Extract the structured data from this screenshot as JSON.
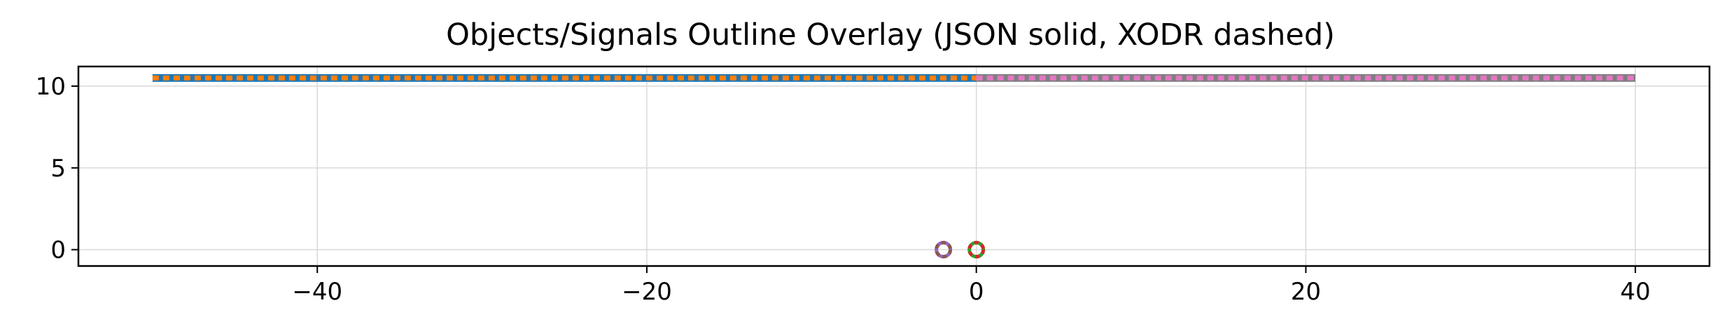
{
  "chart_data": {
    "type": "line",
    "title": "Objects/Signals Outline Overlay (JSON solid, XODR dashed)",
    "xlabel": "",
    "ylabel": "",
    "xlim": [
      -54.5,
      44.5
    ],
    "ylim": [
      -1,
      11.2
    ],
    "xticks": [
      -40,
      -20,
      0,
      20,
      40
    ],
    "xtick_labels": [
      "−40",
      "−20",
      "0",
      "20",
      "40"
    ],
    "yticks": [
      0,
      5,
      10
    ],
    "ytick_labels": [
      "0",
      "5",
      "10"
    ],
    "grid": true,
    "series": [
      {
        "style": "solid",
        "color": "#1f77b4",
        "x": [
          -50,
          0
        ],
        "y": [
          10.5,
          10.5
        ]
      },
      {
        "style": "dashed",
        "color": "#ff7f0e",
        "x": [
          -50,
          0
        ],
        "y": [
          10.5,
          10.5
        ]
      },
      {
        "style": "solid",
        "color": "#7f7f7f",
        "x": [
          0,
          40
        ],
        "y": [
          10.5,
          10.5
        ]
      },
      {
        "style": "dashed",
        "color": "#e377c2",
        "x": [
          0,
          40
        ],
        "y": [
          10.5,
          10.5
        ]
      },
      {
        "style": "solid",
        "color": "#9467bd",
        "marker": "circle",
        "x": [
          -2
        ],
        "y": [
          0
        ]
      },
      {
        "style": "dashed",
        "color": "#8c564b",
        "marker": "circle",
        "x": [
          -2
        ],
        "y": [
          0
        ]
      },
      {
        "style": "solid",
        "color": "#2ca02c",
        "marker": "circle",
        "x": [
          0
        ],
        "y": [
          0
        ]
      },
      {
        "style": "dashed",
        "color": "#d62728",
        "marker": "circle",
        "x": [
          0
        ],
        "y": [
          0
        ]
      }
    ]
  }
}
